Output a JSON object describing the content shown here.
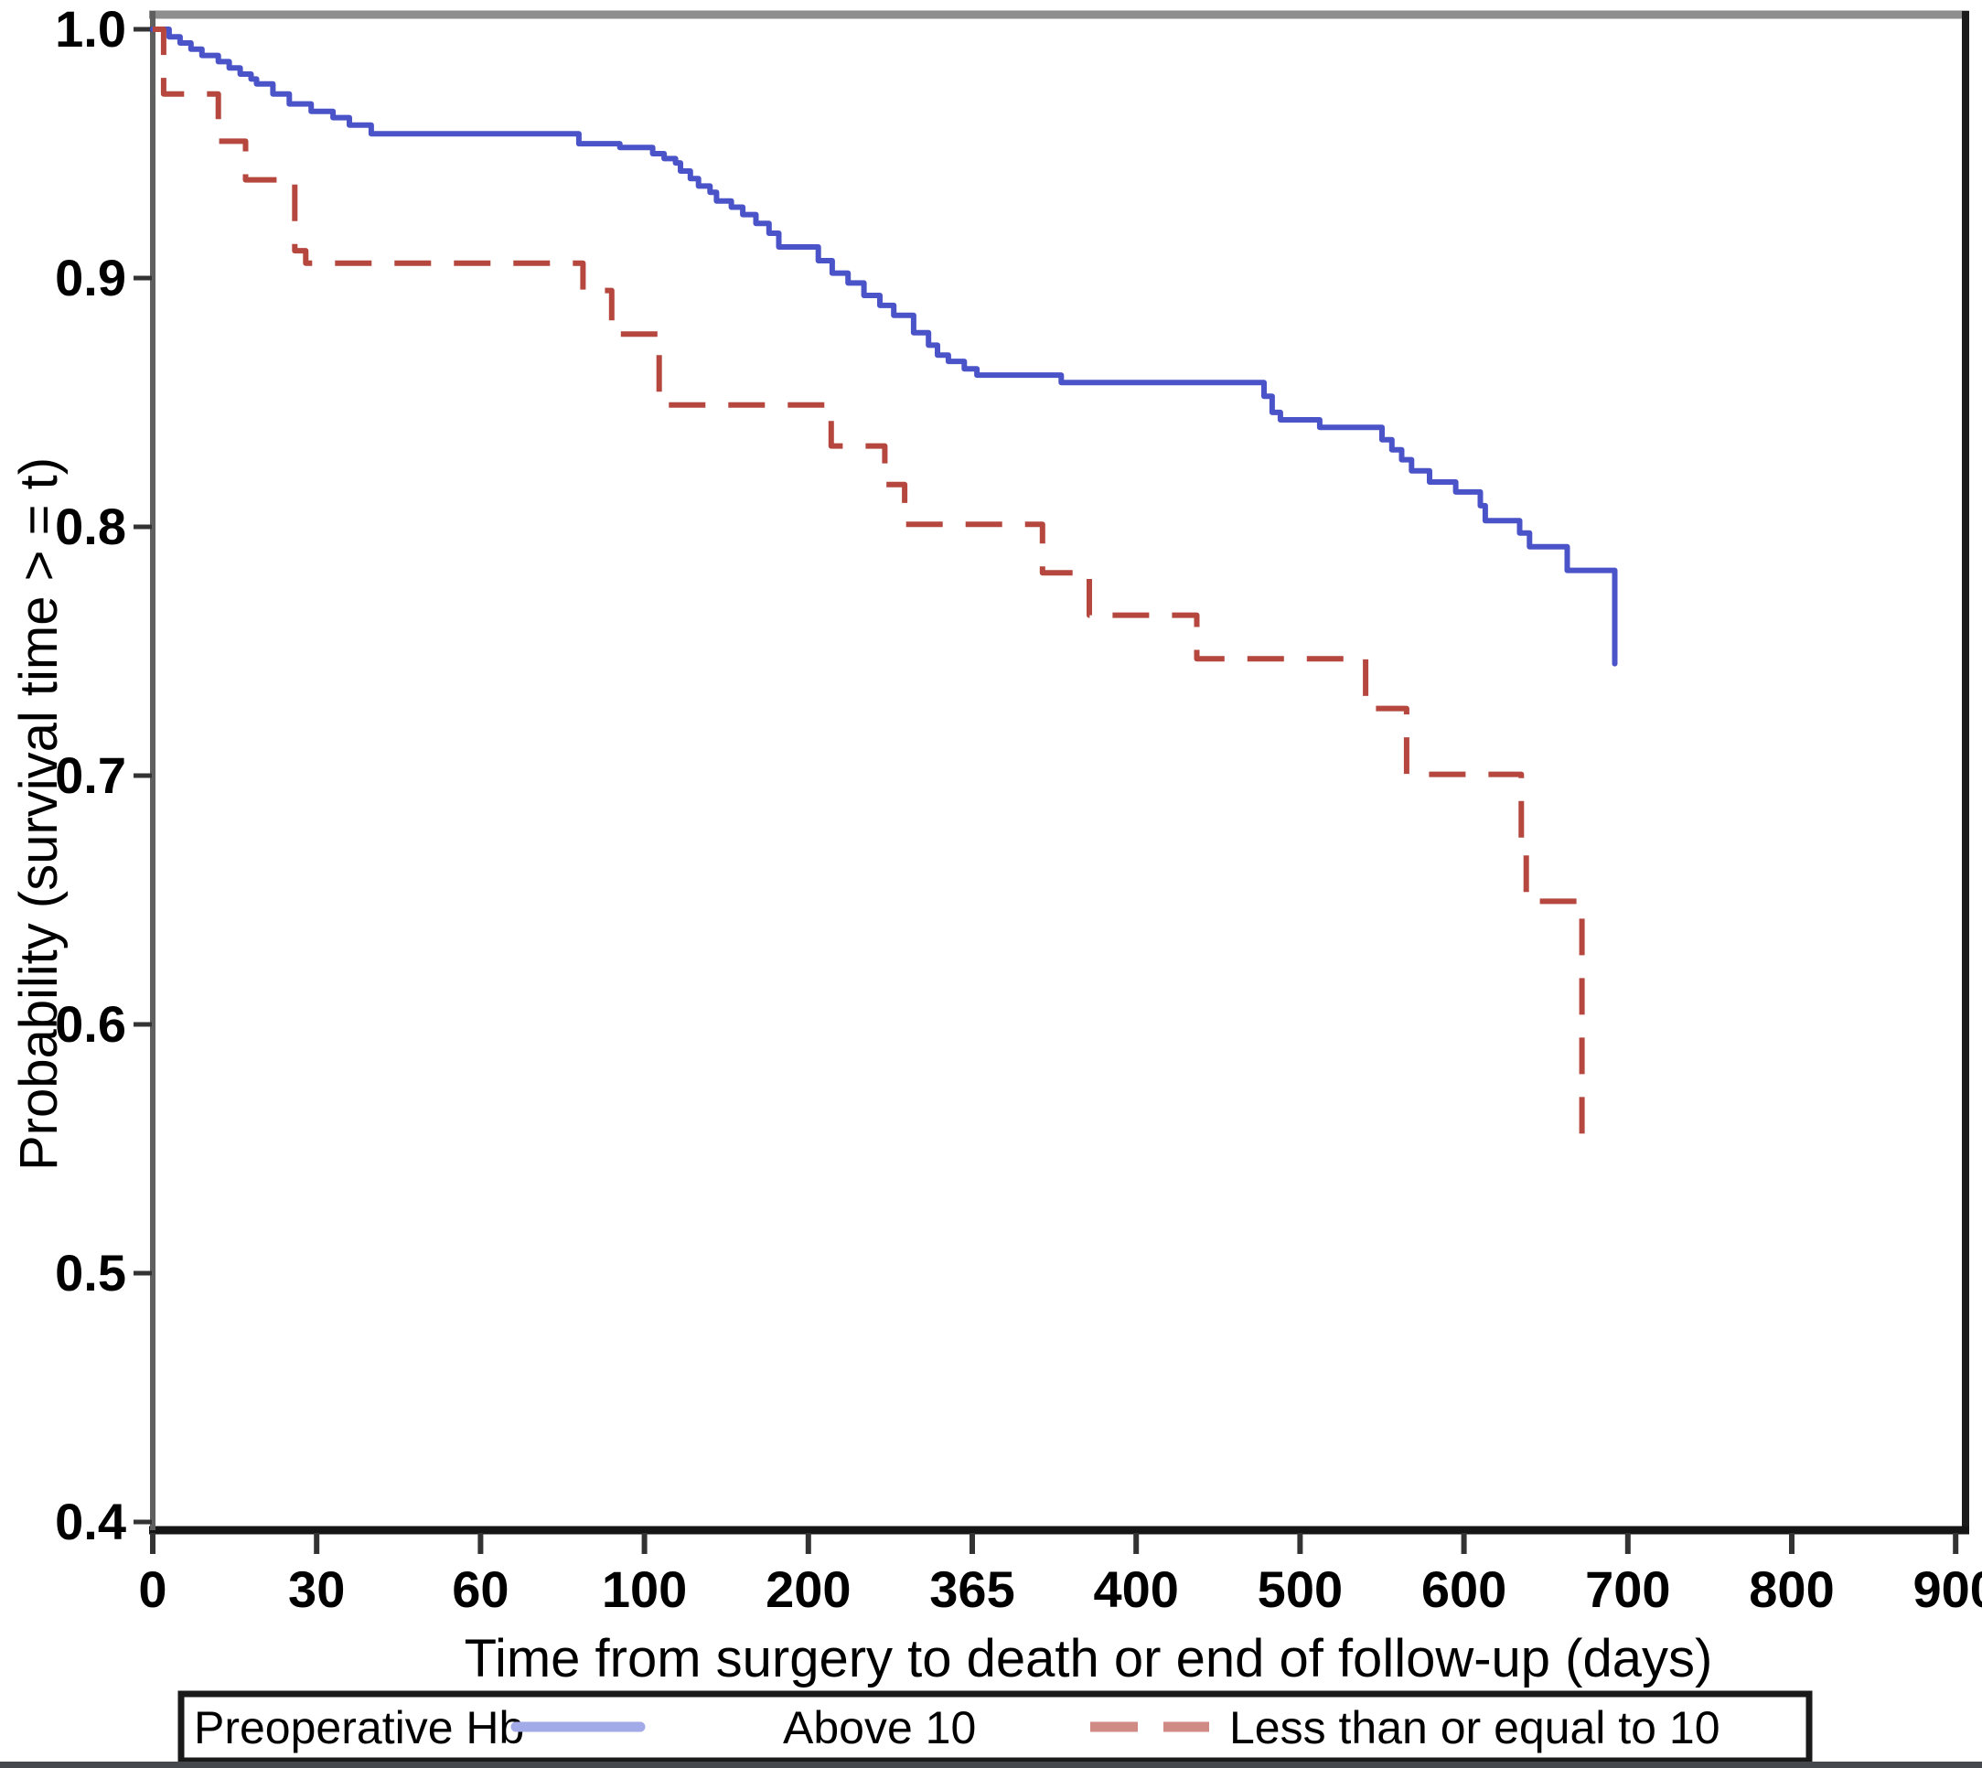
{
  "figure": {
    "background": "#ffffff",
    "x_axis": {
      "title": "Time from surgery to death or end of follow-up (days)",
      "tick_labels": [
        "0",
        "30",
        "60",
        "100",
        "200",
        "365",
        "400",
        "500",
        "600",
        "700",
        "800",
        "900"
      ]
    },
    "y_axis": {
      "title": "Probability (survival time > = t)",
      "tick_labels": [
        "1.0",
        "0.9",
        "0.8",
        "0.7",
        "0.6",
        "0.5",
        "0.4"
      ]
    },
    "legend": {
      "title": "Preoperative Hb",
      "items": [
        {
          "label": "Above 10",
          "swatch_color": "#a3aae8",
          "style": "solid"
        },
        {
          "label": "Less than or equal to 10",
          "swatch_color": "#d08a84",
          "style": "dashed"
        }
      ]
    },
    "colors": {
      "blue_curve": "#4b53c9",
      "red_curve": "#b5473f",
      "frame_top": "#8e8e8e",
      "frame_left": "#5f5f5f",
      "frame_right": "#1c1c1c",
      "frame_bottom": "#151515",
      "tick": "#333333",
      "bottom_strip": "#45494d"
    }
  },
  "chart_data": {
    "type": "line",
    "subtype": "kaplan-meier-step",
    "title": "",
    "xlabel": "Time from surgery to death or end of follow-up (days)",
    "ylabel": "Probability (survival time > = t)",
    "x_scale": "piecewise-linear-evenly-spaced-ticks",
    "x_ticks": [
      0,
      30,
      60,
      100,
      200,
      365,
      400,
      500,
      600,
      700,
      800,
      900
    ],
    "y_ticks": [
      1.0,
      0.9,
      0.8,
      0.7,
      0.6,
      0.5,
      0.4
    ],
    "ylim": [
      0.4,
      1.0
    ],
    "grid": false,
    "legend_position": "bottom",
    "legend_title": "Preoperative Hb",
    "series": [
      {
        "name": "Above 10",
        "color": "#4b53c9",
        "style": "solid",
        "points": [
          [
            0,
            1.0
          ],
          [
            3,
            0.997
          ],
          [
            5,
            0.9945
          ],
          [
            7,
            0.992
          ],
          [
            9,
            0.9895
          ],
          [
            12,
            0.987
          ],
          [
            14,
            0.9845
          ],
          [
            16,
            0.982
          ],
          [
            18,
            0.98
          ],
          [
            19,
            0.978
          ],
          [
            22,
            0.974
          ],
          [
            25,
            0.97
          ],
          [
            29,
            0.967
          ],
          [
            33,
            0.9645
          ],
          [
            36,
            0.9615
          ],
          [
            40,
            0.958
          ],
          [
            84,
            0.954
          ],
          [
            94,
            0.9525
          ],
          [
            105,
            0.95
          ],
          [
            112,
            0.948
          ],
          [
            119,
            0.9463
          ],
          [
            122,
            0.943
          ],
          [
            128,
            0.94
          ],
          [
            133,
            0.937
          ],
          [
            140,
            0.9345
          ],
          [
            144,
            0.931
          ],
          [
            153,
            0.9285
          ],
          [
            160,
            0.9255
          ],
          [
            168,
            0.922
          ],
          [
            176,
            0.918
          ],
          [
            182,
            0.9125
          ],
          [
            210,
            0.907
          ],
          [
            224,
            0.902
          ],
          [
            240,
            0.898
          ],
          [
            256,
            0.893
          ],
          [
            272,
            0.889
          ],
          [
            286,
            0.885
          ],
          [
            306,
            0.878
          ],
          [
            321,
            0.873
          ],
          [
            330,
            0.869
          ],
          [
            341,
            0.8665
          ],
          [
            357,
            0.8635
          ],
          [
            366,
            0.861
          ],
          [
            384,
            0.858
          ],
          [
            478,
            0.8525
          ],
          [
            483,
            0.846
          ],
          [
            488,
            0.843
          ],
          [
            512,
            0.84
          ],
          [
            550,
            0.835
          ],
          [
            556,
            0.831
          ],
          [
            562,
            0.827
          ],
          [
            568,
            0.8225
          ],
          [
            579,
            0.818
          ],
          [
            595,
            0.814
          ],
          [
            610,
            0.8085
          ],
          [
            613,
            0.8025
          ],
          [
            634,
            0.7975
          ],
          [
            640,
            0.792
          ],
          [
            663,
            0.7825
          ],
          [
            692,
            0.745
          ]
        ]
      },
      {
        "name": "Less than or equal to 10",
        "color": "#b5473f",
        "style": "dashed",
        "points": [
          [
            0,
            1.0
          ],
          [
            2,
            0.974
          ],
          [
            12,
            0.955
          ],
          [
            17,
            0.9395
          ],
          [
            26,
            0.911
          ],
          [
            28,
            0.906
          ],
          [
            85,
            0.895
          ],
          [
            92,
            0.8775
          ],
          [
            109,
            0.849
          ],
          [
            223,
            0.8325
          ],
          [
            277,
            0.817
          ],
          [
            297,
            0.801
          ],
          [
            380,
            0.7815
          ],
          [
            390,
            0.7645
          ],
          [
            437,
            0.747
          ],
          [
            540,
            0.727
          ],
          [
            565,
            0.7005
          ],
          [
            635,
            0.674
          ],
          [
            638,
            0.6495
          ],
          [
            672,
            0.5495
          ]
        ]
      }
    ]
  }
}
